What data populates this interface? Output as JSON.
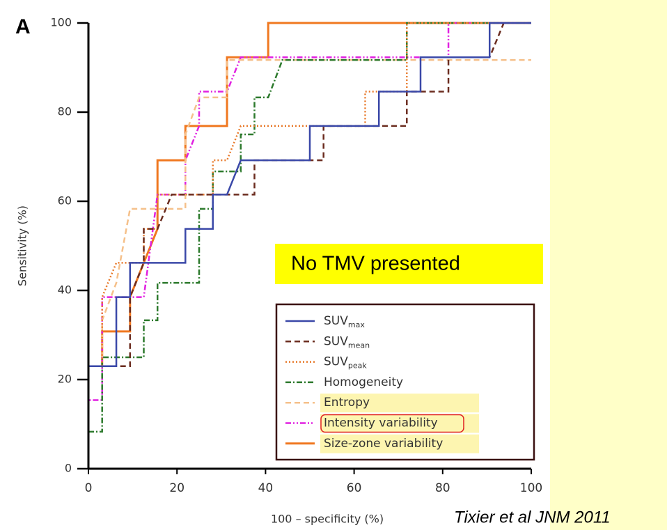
{
  "chart_data": {
    "type": "line",
    "panel_label": "A",
    "xlabel": "100 – specificity (%)",
    "ylabel": "Sensitivity (%)",
    "annotation": "No TMV presented",
    "citation": "Tixier et al JNM 2011",
    "xlim": [
      0,
      100
    ],
    "ylim": [
      0,
      100
    ],
    "xticks": [
      0,
      20,
      40,
      60,
      80,
      100
    ],
    "yticks": [
      0,
      20,
      40,
      60,
      80,
      100
    ],
    "series": [
      {
        "name": "SUV",
        "subscript": "max",
        "color": "#3a48a8",
        "dash": "none",
        "width": 2.5,
        "x": [
          0,
          0,
          6.3,
          6.3,
          9.4,
          9.4,
          21.9,
          21.9,
          28.1,
          28.1,
          31.3,
          34.4,
          50,
          50,
          65.6,
          65.6,
          75,
          75,
          90.6,
          90.6,
          100
        ],
        "values": [
          0,
          23,
          23,
          38.5,
          38.5,
          46.2,
          46.2,
          53.8,
          53.8,
          61.5,
          61.5,
          69.2,
          69.2,
          76.9,
          76.9,
          84.6,
          84.6,
          92.3,
          92.3,
          100,
          100
        ]
      },
      {
        "name": "SUV",
        "subscript": "mean",
        "color": "#6b2c1f",
        "dash": "8,5",
        "width": 2.5,
        "x": [
          3.1,
          9.4,
          9.4,
          12.5,
          12.5,
          15.6,
          18.8,
          37.5,
          37.5,
          53.1,
          53.1,
          71.9,
          71.9,
          81.3,
          81.3,
          90.6,
          93.8
        ],
        "values": [
          23,
          23,
          38.5,
          46.2,
          53.8,
          53.8,
          61.5,
          61.5,
          69.2,
          69.2,
          76.9,
          76.9,
          84.6,
          84.6,
          92.3,
          92.3,
          100
        ]
      },
      {
        "name": "SUV",
        "subscript": "peak",
        "color": "#e8792a",
        "dash": "2,3",
        "width": 2.5,
        "x": [
          3.1,
          3.1,
          6.3,
          12.5,
          12.5,
          15.6,
          15.6,
          28.1,
          28.1,
          31.3,
          34.4,
          62.5,
          62.5,
          71.9,
          71.9,
          71.9,
          100
        ],
        "values": [
          23,
          38.5,
          46.2,
          46.2,
          53.8,
          53.8,
          61.5,
          61.5,
          69.2,
          69.2,
          76.9,
          76.9,
          84.6,
          84.6,
          92.3,
          100,
          100
        ]
      },
      {
        "name": "Homogeneity",
        "color": "#2d7a2d",
        "dash": "8,3,2,3",
        "width": 2.5,
        "x": [
          0,
          3.1,
          3.1,
          12.5,
          12.5,
          15.6,
          15.6,
          25,
          25,
          28.1,
          28.1,
          34.4,
          34.4,
          37.5,
          37.5,
          40.6,
          43.8,
          71.9,
          71.9,
          100
        ],
        "values": [
          8.3,
          8.3,
          25,
          25,
          33.3,
          33.3,
          41.7,
          41.7,
          58.3,
          58.3,
          66.7,
          66.7,
          75,
          75,
          83.3,
          83.3,
          91.7,
          91.7,
          100,
          100
        ]
      },
      {
        "name": "Entropy",
        "color": "#f5c08a",
        "dash": "8,5",
        "width": 2.5,
        "highlight": true,
        "x": [
          3.1,
          3.1,
          6.3,
          9.4,
          21.9,
          21.9,
          25,
          31.3,
          31.3,
          100
        ],
        "values": [
          25,
          33.3,
          41.7,
          58.3,
          58.3,
          75,
          83.3,
          83.3,
          91.7,
          91.7
        ]
      },
      {
        "name": "Intensity variability",
        "color": "#e020e0",
        "dash": "8,3,2,3,2,3",
        "width": 2.5,
        "highlight": true,
        "circled": true,
        "x": [
          0,
          0,
          3.1,
          3.1,
          12.5,
          15.6,
          21.9,
          21.9,
          25,
          25,
          31.3,
          34.4,
          81.3,
          81.3,
          100
        ],
        "values": [
          0,
          15.4,
          15.4,
          38.5,
          38.5,
          61.5,
          61.5,
          69.2,
          76.9,
          84.6,
          84.6,
          92.3,
          92.3,
          100,
          100
        ]
      },
      {
        "name": "Size-zone variability",
        "color": "#f07820",
        "dash": "none",
        "width": 3,
        "highlight": true,
        "x": [
          3.1,
          3.1,
          9.4,
          9.4,
          12.5,
          15.6,
          15.6,
          21.9,
          21.9,
          31.3,
          31.3,
          40.6,
          40.6,
          100
        ],
        "values": [
          23,
          30.8,
          30.8,
          38.5,
          46.2,
          53.8,
          69.2,
          69.2,
          76.9,
          76.9,
          92.3,
          92.3,
          100,
          100
        ]
      }
    ]
  }
}
